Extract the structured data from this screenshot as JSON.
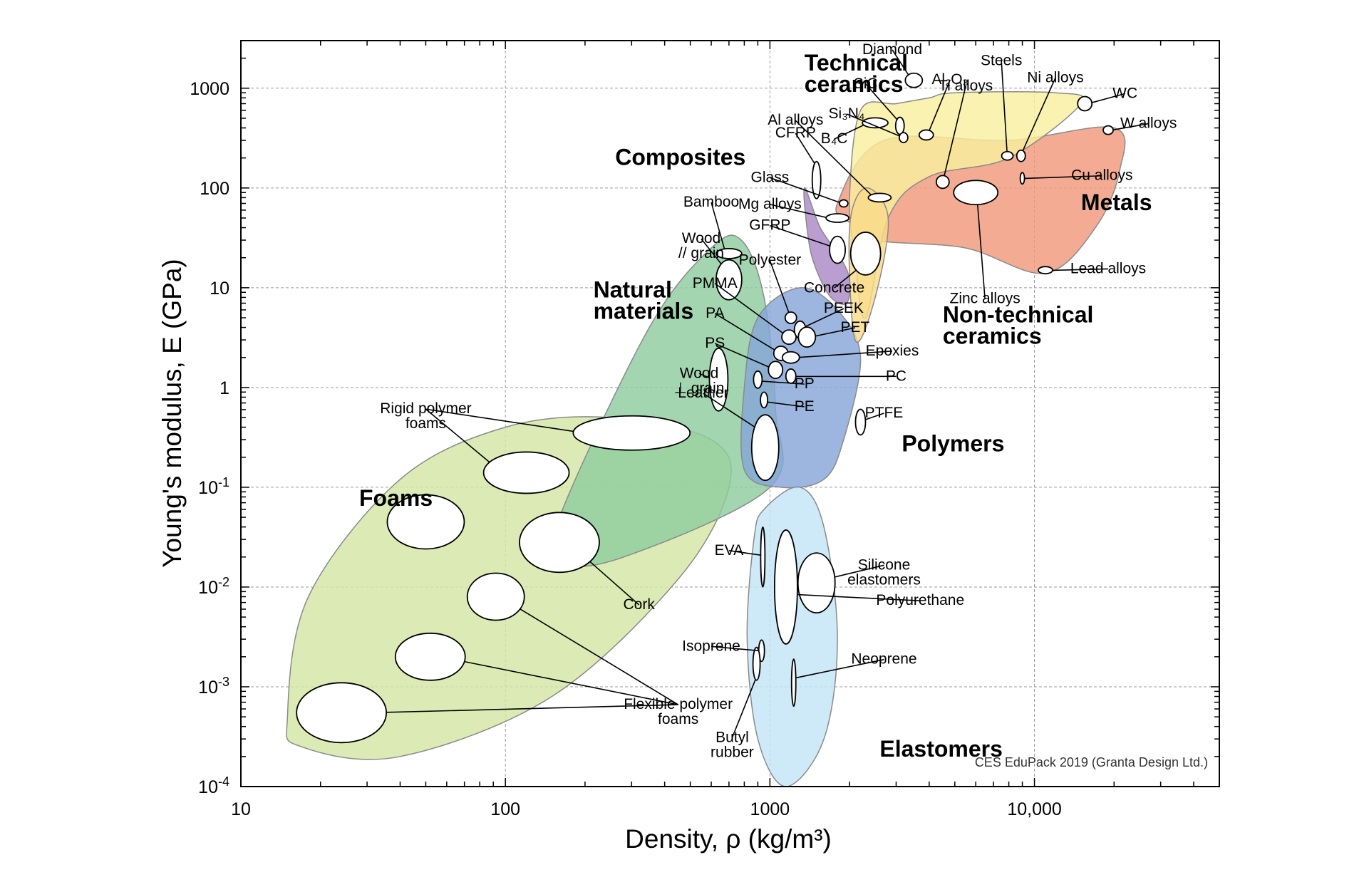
{
  "chart_data": {
    "type": "scatter",
    "title": "",
    "xlabel": "Density, ρ  (kg/m³)",
    "ylabel": "Young's modulus, E (GPa)",
    "xscale": "log",
    "yscale": "log",
    "xlim": [
      10,
      50000
    ],
    "ylim": [
      0.0001,
      3000
    ],
    "grid": true,
    "x_ticks": [
      {
        "value": 10,
        "label": "10"
      },
      {
        "value": 100,
        "label": "100"
      },
      {
        "value": 1000,
        "label": "1000"
      },
      {
        "value": 10000,
        "label": "10,000"
      }
    ],
    "y_ticks": [
      {
        "value": 0.0001,
        "base": "10",
        "exp": "-4"
      },
      {
        "value": 0.001,
        "base": "10",
        "exp": "-3"
      },
      {
        "value": 0.01,
        "base": "10",
        "exp": "-2"
      },
      {
        "value": 0.1,
        "base": "10",
        "exp": "-1"
      },
      {
        "value": 1,
        "base": "1",
        "exp": ""
      },
      {
        "value": 10,
        "base": "10",
        "exp": ""
      },
      {
        "value": 100,
        "base": "100",
        "exp": ""
      },
      {
        "value": 1000,
        "base": "1000",
        "exp": ""
      }
    ],
    "families": [
      {
        "name": "Foams",
        "color": "#d4e6a5",
        "label_at": [
          28,
          0.065
        ],
        "points": [
          [
            15,
            0.0005
          ],
          [
            17,
            0.00025
          ],
          [
            40,
            0.0002
          ],
          [
            150,
            0.0008
          ],
          [
            450,
            0.012
          ],
          [
            700,
            0.1
          ],
          [
            600,
            0.3
          ],
          [
            250,
            0.5
          ],
          [
            100,
            0.4
          ],
          [
            40,
            0.12
          ],
          [
            18,
            0.008
          ]
        ]
      },
      {
        "name": "Natural materials",
        "color": "#8fcc9f",
        "label_at": [
          215,
          8
        ],
        "points": [
          [
            160,
            0.018
          ],
          [
            280,
            0.02
          ],
          [
            1000,
            0.1
          ],
          [
            1050,
            0.6
          ],
          [
            950,
            8
          ],
          [
            780,
            30
          ],
          [
            600,
            25
          ],
          [
            350,
            4
          ],
          [
            160,
            0.05
          ]
        ]
      },
      {
        "name": "Polymers",
        "color": "#86a6d8",
        "label_at": [
          3150,
          0.23
        ],
        "points": [
          [
            800,
            0.15
          ],
          [
            1100,
            0.1
          ],
          [
            1600,
            0.12
          ],
          [
            1900,
            0.3
          ],
          [
            2200,
            2
          ],
          [
            1800,
            6
          ],
          [
            1300,
            10
          ],
          [
            900,
            5
          ],
          [
            800,
            1
          ]
        ]
      },
      {
        "name": "Elastomers",
        "color": "#c3e4f6",
        "label_at": [
          2600,
          0.0002
        ],
        "points": [
          [
            870,
            0.03
          ],
          [
            950,
            0.06
          ],
          [
            1300,
            0.1
          ],
          [
            1600,
            0.04
          ],
          [
            1800,
            0.003
          ],
          [
            1600,
            0.0003
          ],
          [
            1150,
            0.0001
          ],
          [
            900,
            0.0003
          ],
          [
            820,
            0.003
          ]
        ]
      },
      {
        "name": "Composites",
        "color": "#a989c5",
        "label_at": [
          260,
          170
        ],
        "points": [
          [
            1350,
            100
          ],
          [
            1550,
            40
          ],
          [
            1850,
            20
          ],
          [
            2000,
            12
          ],
          [
            1950,
            7
          ],
          [
            1700,
            8
          ],
          [
            1500,
            15
          ],
          [
            1400,
            30
          ]
        ]
      },
      {
        "name": "Metals",
        "color": "#f09a7b",
        "label_at": [
          15000,
          60
        ],
        "points": [
          [
            1800,
            70
          ],
          [
            2700,
            300
          ],
          [
            8000,
            300
          ],
          [
            20000,
            400
          ],
          [
            21000,
            150
          ],
          [
            17000,
            40
          ],
          [
            11000,
            14
          ],
          [
            5500,
            25
          ],
          [
            2500,
            30
          ],
          [
            2000,
            45
          ]
        ]
      },
      {
        "name": "Technical ceramics",
        "color": "#f8ef9f",
        "label_at": [
          1350,
          1500
        ],
        "points": [
          [
            2200,
            600
          ],
          [
            3000,
            700
          ],
          [
            4000,
            800
          ],
          [
            5000,
            900
          ],
          [
            12000,
            900
          ],
          [
            15000,
            700
          ],
          [
            8000,
            200
          ],
          [
            4000,
            130
          ],
          [
            2800,
            50
          ],
          [
            2300,
            5
          ],
          [
            2100,
            20
          ],
          [
            2000,
            80
          ]
        ]
      },
      {
        "name": "Non-technical ceramics",
        "color": "#fadb8a",
        "label_at": [
          4500,
          4.5
        ],
        "points": [
          [
            2100,
            3
          ],
          [
            2500,
            8
          ],
          [
            2800,
            50
          ],
          [
            2300,
            100
          ],
          [
            2000,
            40
          ]
        ]
      }
    ],
    "materials": [
      {
        "name": "Diamond",
        "x": 3500,
        "y": 1200,
        "rx": 12,
        "ry": 10,
        "label_at": [
          2900,
          2200
        ]
      },
      {
        "name": "SiC",
        "x": 3100,
        "y": 420,
        "rx": 6,
        "ry": 12,
        "label_at": [
          2300,
          1000
        ]
      },
      {
        "name": "Al₂O₃",
        "x": 3900,
        "y": 340,
        "rx": 10,
        "ry": 7,
        "label_at": [
          4800,
          1100
        ]
      },
      {
        "name": "Si₃N₄",
        "x": 3200,
        "y": 320,
        "rx": 6,
        "ry": 7,
        "label_at": [
          1950,
          500
        ]
      },
      {
        "name": "B₄C",
        "x": 2500,
        "y": 450,
        "rx": 18,
        "ry": 7,
        "label_at": [
          1750,
          280
        ]
      },
      {
        "name": "Steels",
        "x": 7900,
        "y": 210,
        "rx": 8,
        "ry": 6,
        "label_at": [
          7500,
          1700
        ]
      },
      {
        "name": "Ni alloys",
        "x": 8900,
        "y": 210,
        "rx": 6,
        "ry": 8,
        "label_at": [
          12000,
          1150
        ]
      },
      {
        "name": "WC",
        "x": 15500,
        "y": 700,
        "rx": 10,
        "ry": 10,
        "label_at": [
          22000,
          800
        ]
      },
      {
        "name": "W alloys",
        "x": 19000,
        "y": 380,
        "rx": 7,
        "ry": 6,
        "label_at": [
          27000,
          400
        ]
      },
      {
        "name": "Cu alloys",
        "x": 9000,
        "y": 125,
        "rx": 3,
        "ry": 8,
        "label_at": [
          18000,
          120
        ]
      },
      {
        "name": "Ti alloys",
        "x": 4500,
        "y": 115,
        "rx": 9,
        "ry": 9,
        "label_at": [
          5500,
          950
        ]
      },
      {
        "name": "Zinc alloys",
        "x": 6000,
        "y": 90,
        "rx": 31,
        "ry": 17,
        "label_at": [
          6500,
          7
        ]
      },
      {
        "name": "Lead alloys",
        "x": 11000,
        "y": 15,
        "rx": 10,
        "ry": 5,
        "label_at": [
          19000,
          14
        ]
      },
      {
        "name": "Al alloys",
        "x": 2600,
        "y": 80,
        "rx": 16,
        "ry": 6,
        "label_at": [
          1250,
          430
        ]
      },
      {
        "name": "CFRP",
        "x": 1500,
        "y": 120,
        "rx": 6,
        "ry": 26,
        "label_at": [
          1250,
          320
        ]
      },
      {
        "name": "Glass",
        "x": 1900,
        "y": 70,
        "rx": 6,
        "ry": 5,
        "label_at": [
          1000,
          115
        ]
      },
      {
        "name": "Mg alloys",
        "x": 1800,
        "y": 50,
        "rx": 16,
        "ry": 6,
        "label_at": [
          1000,
          62
        ]
      },
      {
        "name": "GFRP",
        "x": 1800,
        "y": 24,
        "rx": 11,
        "ry": 19,
        "label_at": [
          1000,
          38
        ]
      },
      {
        "name": "Concrete",
        "x": 2300,
        "y": 22,
        "rx": 21,
        "ry": 30,
        "label_at": [
          1750,
          9
        ]
      },
      {
        "name": "Bamboo",
        "x": 700,
        "y": 22,
        "rx": 18,
        "ry": 7,
        "label_at": [
          600,
          65
        ]
      },
      {
        "name": "Wood // grain",
        "x": 700,
        "y": 12,
        "rx": 18,
        "ry": 28,
        "label_at": [
          550,
          28
        ]
      },
      {
        "name": "Polyester",
        "x": 1200,
        "y": 5,
        "rx": 8,
        "ry": 8,
        "label_at": [
          1000,
          17
        ]
      },
      {
        "name": "PMMA",
        "x": 1180,
        "y": 3.2,
        "rx": 10,
        "ry": 10,
        "label_at": [
          620,
          10
        ]
      },
      {
        "name": "PA",
        "x": 1100,
        "y": 2.2,
        "rx": 10,
        "ry": 10,
        "label_at": [
          620,
          5
        ]
      },
      {
        "name": "PEEK",
        "x": 1300,
        "y": 3.8,
        "rx": 8,
        "ry": 12,
        "label_at": [
          1900,
          5.6
        ]
      },
      {
        "name": "PET",
        "x": 1380,
        "y": 3.2,
        "rx": 12,
        "ry": 14,
        "label_at": [
          2100,
          3.6
        ]
      },
      {
        "name": "Epoxies",
        "x": 1200,
        "y": 2,
        "rx": 12,
        "ry": 8,
        "label_at": [
          2900,
          2.1
        ]
      },
      {
        "name": "PS",
        "x": 1050,
        "y": 1.5,
        "rx": 10,
        "ry": 12,
        "label_at": [
          620,
          2.5
        ]
      },
      {
        "name": "PC",
        "x": 1200,
        "y": 1.3,
        "rx": 7,
        "ry": 10,
        "label_at": [
          3000,
          1.17
        ]
      },
      {
        "name": "Wood ⊥ grain",
        "x": 640,
        "y": 1.2,
        "rx": 13,
        "ry": 44,
        "label_at": [
          540,
          1.25
        ]
      },
      {
        "name": "PP",
        "x": 900,
        "y": 1.2,
        "rx": 6,
        "ry": 12,
        "label_at": [
          1350,
          0.98
        ]
      },
      {
        "name": "PE",
        "x": 950,
        "y": 0.75,
        "rx": 5,
        "ry": 11,
        "label_at": [
          1350,
          0.58
        ]
      },
      {
        "name": "PTFE",
        "x": 2200,
        "y": 0.45,
        "rx": 7,
        "ry": 18,
        "label_at": [
          2700,
          0.5
        ]
      },
      {
        "name": "Leather",
        "x": 960,
        "y": 0.25,
        "rx": 19,
        "ry": 46,
        "label_at": [
          560,
          0.79
        ]
      },
      {
        "name": "Rigid polymer foams",
        "x": 300,
        "y": 0.35,
        "rx": 82,
        "ry": 24,
        "label_at": [
          50,
          0.55
        ]
      },
      {
        "name": "Rigid polymer foams",
        "x": 120,
        "y": 0.14,
        "rx": 60,
        "ry": 29,
        "label_at": [
          50,
          0.55
        ]
      },
      {
        "name": "Foams",
        "x": 50,
        "y": 0.045,
        "rx": 54,
        "ry": 38,
        "label_at": [
          50,
          0.55
        ]
      },
      {
        "name": "Cork",
        "x": 160,
        "y": 0.028,
        "rx": 56,
        "ry": 42,
        "label_at": [
          320,
          0.006
        ]
      },
      {
        "name": "Flexible polymer foams",
        "x": 92,
        "y": 0.008,
        "rx": 40,
        "ry": 33,
        "label_at": [
          450,
          0.0006
        ]
      },
      {
        "name": "Flexible polymer foams",
        "x": 52,
        "y": 0.002,
        "rx": 49,
        "ry": 33,
        "label_at": [
          450,
          0.0006
        ]
      },
      {
        "name": "Flexible polymer foams",
        "x": 24,
        "y": 0.00055,
        "rx": 63,
        "ry": 42,
        "label_at": [
          450,
          0.0006
        ]
      },
      {
        "name": "EVA",
        "x": 940,
        "y": 0.02,
        "rx": 3,
        "ry": 42,
        "label_at": [
          700,
          0.021
        ]
      },
      {
        "name": "Silicone elastomers",
        "x": 1500,
        "y": 0.011,
        "rx": 26,
        "ry": 42,
        "label_at": [
          2700,
          0.015
        ]
      },
      {
        "name": "Polyurethane",
        "x": 1150,
        "y": 0.01,
        "rx": 16,
        "ry": 80,
        "label_at": [
          3700,
          0.0066
        ]
      },
      {
        "name": "Isoprene",
        "x": 930,
        "y": 0.0023,
        "rx": 4,
        "ry": 15,
        "label_at": [
          600,
          0.0023
        ]
      },
      {
        "name": "Neoprene",
        "x": 1230,
        "y": 0.0011,
        "rx": 3,
        "ry": 33,
        "label_at": [
          2700,
          0.0017
        ]
      },
      {
        "name": "Butyl rubber",
        "x": 890,
        "y": 0.0017,
        "rx": 5,
        "ry": 23,
        "label_at": [
          720,
          0.00028
        ]
      }
    ],
    "credit": "CES EduPack 2019 (Granta Design Ltd.)"
  }
}
